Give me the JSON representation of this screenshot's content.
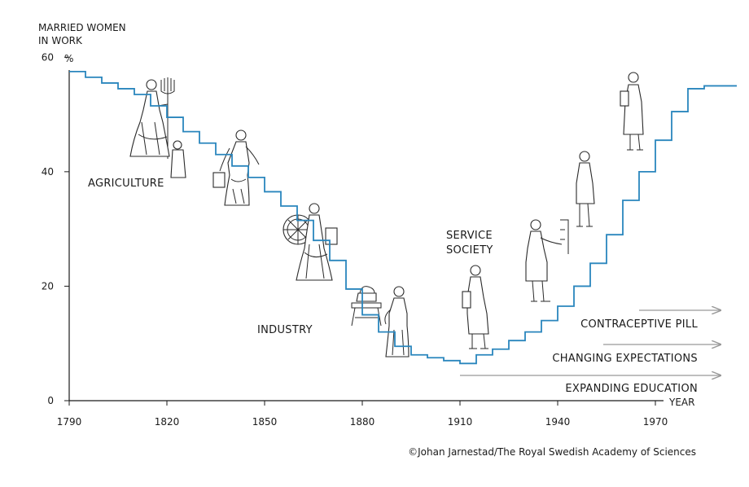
{
  "chart_data": {
    "type": "line",
    "step": true,
    "ylabel_line1": "MARRIED WOMEN",
    "ylabel_line2": "IN WORK",
    "yunit": "%",
    "xlabel": "YEAR",
    "xlim": [
      1790,
      1995
    ],
    "ylim": [
      0,
      70
    ],
    "xticks": [
      1790,
      1820,
      1850,
      1880,
      1910,
      1940,
      1970
    ],
    "yticks": [
      0,
      20,
      40,
      60
    ],
    "series": [
      {
        "color": "#2a86bd",
        "x": [
          1790,
          1795,
          1800,
          1805,
          1810,
          1815,
          1820,
          1825,
          1830,
          1835,
          1840,
          1845,
          1850,
          1855,
          1860,
          1865,
          1870,
          1875,
          1880,
          1885,
          1890,
          1895,
          1900,
          1905,
          1910,
          1915,
          1920,
          1925,
          1930,
          1935,
          1940,
          1945,
          1950,
          1955,
          1960,
          1965,
          1970,
          1975,
          1980,
          1985,
          1990
        ],
        "y": [
          57.5,
          56.5,
          55.5,
          54.5,
          53.5,
          51.5,
          49.5,
          47.0,
          45.0,
          43.0,
          41.0,
          39.0,
          36.5,
          34.0,
          31.5,
          28.0,
          24.5,
          19.5,
          15.0,
          12.0,
          9.5,
          8.0,
          7.5,
          7.0,
          6.5,
          8.0,
          9.0,
          10.5,
          12.0,
          14.0,
          16.5,
          20.0,
          24.0,
          29.0,
          35.0,
          40.0,
          45.5,
          50.5,
          54.5,
          55.0,
          55.0
        ]
      }
    ],
    "annotations": {
      "agriculture": "AGRICULTURE",
      "industry": "INDUSTRY",
      "service_line1": "SERVICE",
      "service_line2": "SOCIETY"
    },
    "trends": [
      {
        "label": "CONTRACEPTIVE PILL",
        "start": 1965,
        "end": 1990
      },
      {
        "label": "CHANGING EXPECTATIONS",
        "start": 1954,
        "end": 1990
      },
      {
        "label": "EXPANDING EDUCATION",
        "start": 1910,
        "end": 1990
      }
    ],
    "trend_color": "#999999"
  },
  "credit": "©Johan Jarnestad/The Royal Swedish Academy of Sciences"
}
